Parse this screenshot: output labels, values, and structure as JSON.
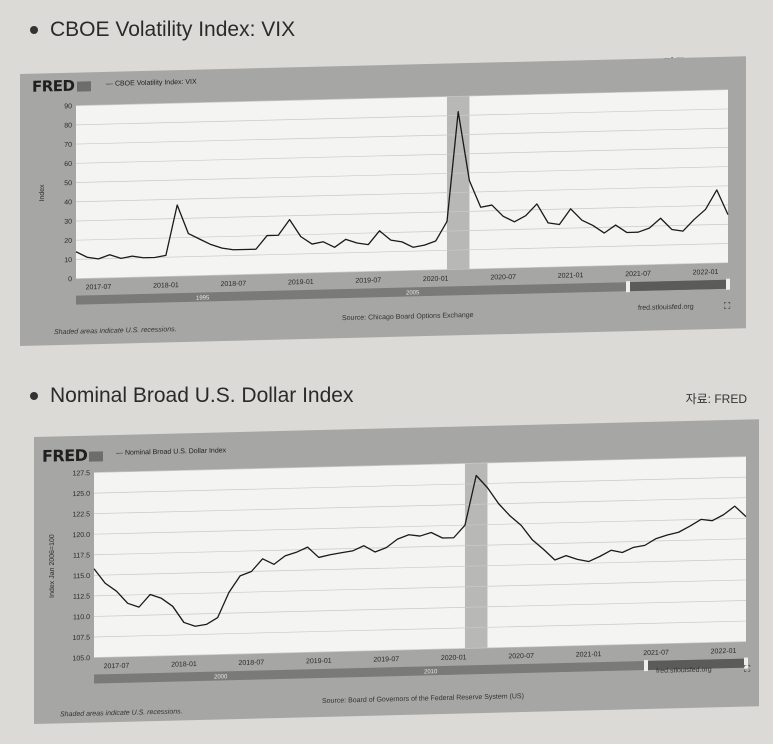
{
  "sections": [
    {
      "title": "CBOE Volatility Index: VIX",
      "source_label": "자료: FRED"
    },
    {
      "title": "Nominal Broad U.S. Dollar Index",
      "source_label": "자료: FRED"
    }
  ],
  "fred_logo": "FRED",
  "chart_data": [
    {
      "type": "line",
      "series_title": "— CBOE Volatility Index: VIX",
      "ylabel": "Index",
      "ylim": [
        0,
        90
      ],
      "yticks": [
        "0",
        "10",
        "20",
        "30",
        "40",
        "50",
        "60",
        "70",
        "80",
        "90"
      ],
      "xticks": [
        "2017-07",
        "2018-01",
        "2018-07",
        "2019-01",
        "2019-07",
        "2020-01",
        "2020-07",
        "2021-01",
        "2021-07",
        "2022-01"
      ],
      "range_slider_labels": [
        "1995",
        "2005"
      ],
      "footer_note": "Shaded areas indicate U.S. recessions.",
      "footer_source": "Source: Chicago Board Options Exchange",
      "footer_site": "fred.stlouisfed.org",
      "recession": [
        "2020-02",
        "2020-04"
      ],
      "series": [
        {
          "color": "#1a1a1a",
          "x": [
            "2017-05",
            "2017-06",
            "2017-07",
            "2017-08",
            "2017-09",
            "2017-10",
            "2017-11",
            "2017-12",
            "2018-01",
            "2018-02",
            "2018-03",
            "2018-04",
            "2018-05",
            "2018-06",
            "2018-07",
            "2018-08",
            "2018-09",
            "2018-10",
            "2018-11",
            "2018-12",
            "2019-01",
            "2019-02",
            "2019-03",
            "2019-04",
            "2019-05",
            "2019-06",
            "2019-07",
            "2019-08",
            "2019-09",
            "2019-10",
            "2019-11",
            "2019-12",
            "2020-01",
            "2020-02",
            "2020-03",
            "2020-04",
            "2020-05",
            "2020-06",
            "2020-07",
            "2020-08",
            "2020-09",
            "2020-10",
            "2020-11",
            "2020-12",
            "2021-01",
            "2021-02",
            "2021-03",
            "2021-04",
            "2021-05",
            "2021-06",
            "2021-07",
            "2021-08",
            "2021-09",
            "2021-10",
            "2021-11",
            "2021-12",
            "2022-01",
            "2022-02",
            "2022-03"
          ],
          "values": [
            14,
            11,
            10,
            12,
            10,
            11,
            10,
            10,
            11,
            37,
            22,
            19,
            16,
            14,
            13,
            13,
            13,
            20,
            20,
            28,
            19,
            15,
            16,
            13,
            17,
            15,
            14,
            21,
            16,
            15,
            12,
            13,
            15,
            25,
            82,
            46,
            32,
            33,
            27,
            24,
            27,
            33,
            23,
            22,
            30,
            24,
            21,
            17,
            21,
            17,
            17,
            19,
            24,
            18,
            17,
            23,
            28,
            38,
            25
          ]
        }
      ]
    },
    {
      "type": "line",
      "series_title": "— Nominal Broad U.S. Dollar Index",
      "ylabel": "Index Jan 2006=100",
      "ylim": [
        105.0,
        127.5
      ],
      "yticks": [
        "105.0",
        "107.5",
        "110.0",
        "112.5",
        "115.0",
        "117.5",
        "120.0",
        "122.5",
        "125.0",
        "127.5"
      ],
      "xticks": [
        "2017-07",
        "2018-01",
        "2018-07",
        "2019-01",
        "2019-07",
        "2020-01",
        "2020-07",
        "2021-01",
        "2021-07",
        "2022-01"
      ],
      "range_slider_labels": [
        "2000",
        "2010"
      ],
      "footer_note": "Shaded areas indicate U.S. recessions.",
      "footer_source": "Source: Board of Governors of the Federal Reserve System (US)",
      "footer_site": "fred.stlouisfed.org",
      "recession": [
        "2020-02",
        "2020-04"
      ],
      "series": [
        {
          "color": "#1a1a1a",
          "x": [
            "2017-05",
            "2017-06",
            "2017-07",
            "2017-08",
            "2017-09",
            "2017-10",
            "2017-11",
            "2017-12",
            "2018-01",
            "2018-02",
            "2018-03",
            "2018-04",
            "2018-05",
            "2018-06",
            "2018-07",
            "2018-08",
            "2018-09",
            "2018-10",
            "2018-11",
            "2018-12",
            "2019-01",
            "2019-02",
            "2019-03",
            "2019-04",
            "2019-05",
            "2019-06",
            "2019-07",
            "2019-08",
            "2019-09",
            "2019-10",
            "2019-11",
            "2019-12",
            "2020-01",
            "2020-02",
            "2020-03",
            "2020-04",
            "2020-05",
            "2020-06",
            "2020-07",
            "2020-08",
            "2020-09",
            "2020-10",
            "2020-11",
            "2020-12",
            "2021-01",
            "2021-02",
            "2021-03",
            "2021-04",
            "2021-05",
            "2021-06",
            "2021-07",
            "2021-08",
            "2021-09",
            "2021-10",
            "2021-11",
            "2021-12",
            "2022-01",
            "2022-02",
            "2022-03"
          ],
          "values": [
            115.8,
            114.0,
            113.0,
            111.5,
            111.0,
            112.5,
            112.0,
            111.0,
            109.0,
            108.5,
            108.7,
            109.5,
            112.5,
            114.5,
            115.0,
            116.5,
            115.8,
            116.8,
            117.2,
            117.8,
            116.5,
            116.8,
            117.0,
            117.2,
            117.8,
            117.0,
            117.5,
            118.5,
            119.0,
            118.8,
            119.2,
            118.5,
            118.5,
            120.0,
            126.0,
            124.5,
            122.5,
            121.0,
            119.8,
            118.0,
            116.8,
            115.5,
            116.0,
            115.5,
            115.2,
            115.8,
            116.5,
            116.2,
            116.8,
            117.0,
            117.8,
            118.2,
            118.5,
            119.2,
            120.0,
            119.8,
            120.5,
            121.5,
            120.2
          ]
        }
      ]
    }
  ]
}
